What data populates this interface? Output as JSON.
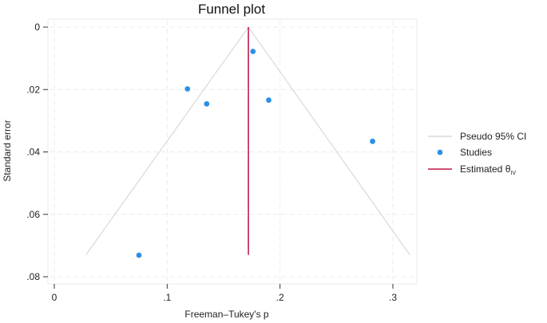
{
  "chart_data": {
    "type": "scatter",
    "title": "Funnel plot",
    "xlabel": "Freeman–Tukey's p",
    "ylabel": "Standard error",
    "xlim": [
      0,
      0.32
    ],
    "ylim": [
      0.08,
      0
    ],
    "y_reversed": true,
    "x_ticks": [
      0,
      0.1,
      0.2,
      0.3
    ],
    "x_tick_labels": [
      "0",
      ".1",
      ".2",
      ".3"
    ],
    "y_ticks": [
      0,
      0.02,
      0.04,
      0.06,
      0.08
    ],
    "y_tick_labels": [
      "0",
      ".02",
      ".04",
      ".06",
      ".08"
    ],
    "grid": true,
    "legend_position": "right",
    "estimate": 0.172,
    "series": [
      {
        "name": "Pseudo 95% CI",
        "type": "line",
        "color": "#d9d9d9",
        "points": [
          [
            0.028,
            0.073
          ],
          [
            0.172,
            0
          ],
          [
            0.315,
            0.073
          ]
        ]
      },
      {
        "name": "Studies",
        "type": "scatter",
        "color": "#2f8fe6",
        "points": [
          [
            0.176,
            0.0078
          ],
          [
            0.118,
            0.0198
          ],
          [
            0.135,
            0.0246
          ],
          [
            0.19,
            0.0234
          ],
          [
            0.282,
            0.0366
          ],
          [
            0.075,
            0.0731
          ]
        ]
      },
      {
        "name": "Estimated θ",
        "name_subscript": "IV",
        "type": "line",
        "color": "#c8385f",
        "points": [
          [
            0.172,
            0
          ],
          [
            0.172,
            0.073
          ]
        ]
      }
    ]
  }
}
